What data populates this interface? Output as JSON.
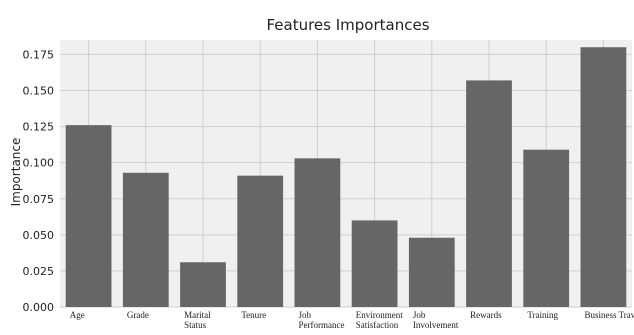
{
  "chart_data": {
    "type": "bar",
    "title": "Features Importances",
    "xlabel": "",
    "ylabel": "Importance",
    "categories": [
      "Age",
      "Grade",
      "Marital Status",
      "Tenure",
      "Job Performance",
      "Environment Satisfaction",
      "Job Involvement",
      "Rewards",
      "Training",
      "Business Travel"
    ],
    "values": [
      0.126,
      0.093,
      0.031,
      0.091,
      0.103,
      0.06,
      0.048,
      0.157,
      0.109,
      0.18
    ],
    "ylim": [
      0,
      0.185
    ],
    "yticks": [
      "0.000",
      "0.025",
      "0.050",
      "0.075",
      "0.100",
      "0.125",
      "0.150",
      "0.175"
    ],
    "grid": true,
    "colors": {
      "bar": "#666666",
      "plot_background": "#f0f0f0",
      "gridline": "#cfcfcf",
      "text": "#222222"
    }
  }
}
